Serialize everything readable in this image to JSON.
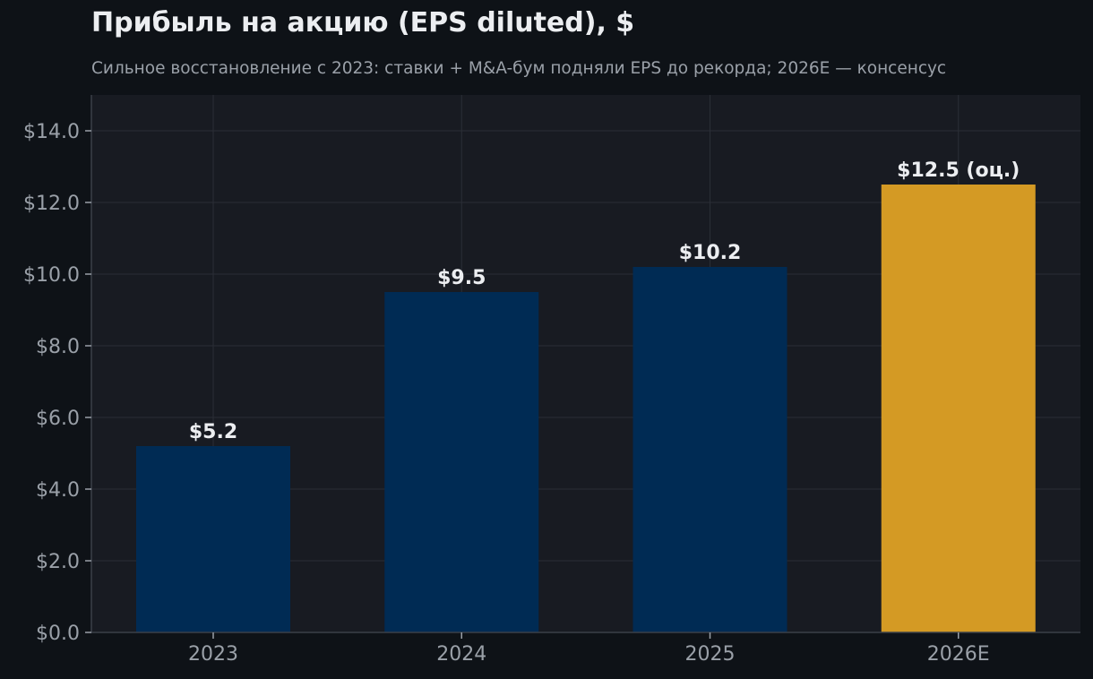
{
  "chart_data": {
    "type": "bar",
    "title": "Прибыль на акцию (EPS diluted), $",
    "subtitle": "Сильное восстановление с 2023: ставки + M&A-бум подняли EPS до рекорда; 2026E — консенсус",
    "categories": [
      "2023",
      "2024",
      "2025",
      "2026E"
    ],
    "values": [
      5.2,
      9.5,
      10.2,
      12.5
    ],
    "data_labels": [
      "$5.2",
      "$9.5",
      "$10.2",
      "$12.5 (оц.)"
    ],
    "bar_colors": [
      "#002b54",
      "#002b54",
      "#002b54",
      "#d49a24"
    ],
    "y_ticks": [
      0,
      2,
      4,
      6,
      8,
      10,
      12,
      14
    ],
    "y_tick_labels": [
      "$0.0",
      "$2.0",
      "$4.0",
      "$6.0",
      "$8.0",
      "$10.0",
      "$12.0",
      "$14.0"
    ],
    "ylim": [
      0,
      15
    ],
    "grid": true,
    "xlabel": "",
    "ylabel": "",
    "colors": {
      "background": "#0e1217",
      "plot_background": "#181b22",
      "grid": "#2a2e36",
      "axis": "#3a3f48",
      "text": "#eceef1",
      "muted_text": "#9aa0a8"
    }
  }
}
